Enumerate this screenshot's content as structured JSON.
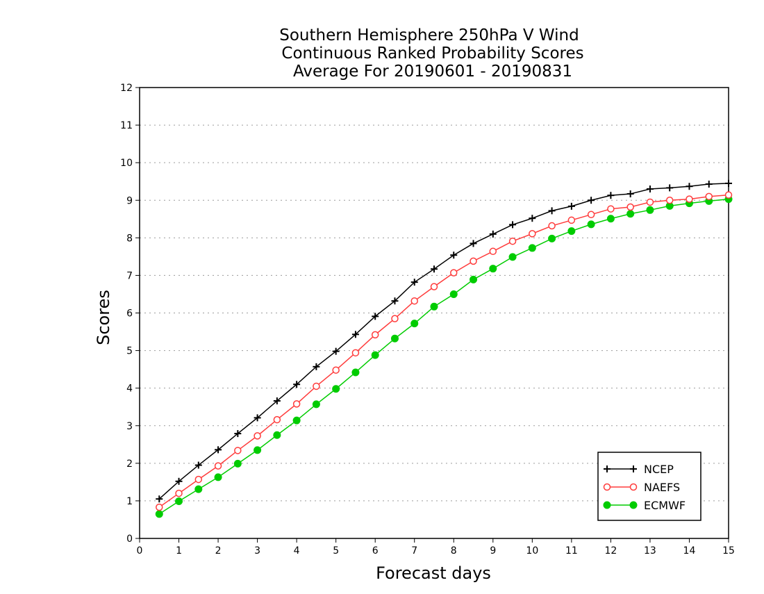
{
  "chart_data": {
    "type": "line",
    "title_lines": [
      "Southern Hemisphere 250hPa V Wind",
      "Continuous Ranked Probability Scores",
      "Average For 20190601 - 20190831"
    ],
    "xlabel": "Forecast days",
    "ylabel": "Scores",
    "xlim": [
      0,
      15
    ],
    "ylim": [
      0,
      12
    ],
    "x_ticks": [
      "0",
      "1",
      "2",
      "3",
      "4",
      "5",
      "6",
      "7",
      "8",
      "9",
      "10",
      "11",
      "12",
      "13",
      "14",
      "15"
    ],
    "y_ticks": [
      "0",
      "1",
      "2",
      "3",
      "4",
      "5",
      "6",
      "7",
      "8",
      "9",
      "10",
      "11",
      "12"
    ],
    "grid": "dotted horizontal",
    "legend_position": "bottom-right",
    "x": [
      0.5,
      1,
      1.5,
      2,
      2.5,
      3,
      3.5,
      4,
      4.5,
      5,
      5.5,
      6,
      6.5,
      7,
      7.5,
      8,
      8.5,
      9,
      9.5,
      10,
      10.5,
      11,
      11.5,
      12,
      12.5,
      13,
      13.5,
      14,
      14.5,
      15
    ],
    "series": [
      {
        "name": "NCEP",
        "color": "#000000",
        "marker": "plus",
        "values": [
          1.05,
          1.52,
          1.95,
          2.36,
          2.79,
          3.21,
          3.66,
          4.1,
          4.57,
          4.98,
          5.43,
          5.91,
          6.32,
          6.82,
          7.17,
          7.54,
          7.85,
          8.1,
          8.35,
          8.52,
          8.72,
          8.84,
          9.0,
          9.13,
          9.17,
          9.3,
          9.33,
          9.37,
          9.43,
          9.45
        ]
      },
      {
        "name": "NAEFS",
        "color": "#ff3b3b",
        "marker": "open-circle",
        "values": [
          0.83,
          1.2,
          1.57,
          1.93,
          2.34,
          2.73,
          3.16,
          3.58,
          4.05,
          4.48,
          4.94,
          5.42,
          5.85,
          6.32,
          6.7,
          7.07,
          7.38,
          7.64,
          7.91,
          8.11,
          8.32,
          8.47,
          8.62,
          8.77,
          8.82,
          8.95,
          9.0,
          9.03,
          9.1,
          9.14
        ]
      },
      {
        "name": "ECMWF",
        "color": "#00cc00",
        "marker": "filled-circle",
        "values": [
          0.65,
          0.99,
          1.31,
          1.63,
          1.99,
          2.35,
          2.75,
          3.14,
          3.57,
          3.98,
          4.42,
          4.88,
          5.32,
          5.72,
          6.17,
          6.5,
          6.89,
          7.18,
          7.49,
          7.73,
          7.98,
          8.18,
          8.36,
          8.51,
          8.64,
          8.74,
          8.85,
          8.92,
          8.98,
          9.03
        ]
      }
    ]
  }
}
